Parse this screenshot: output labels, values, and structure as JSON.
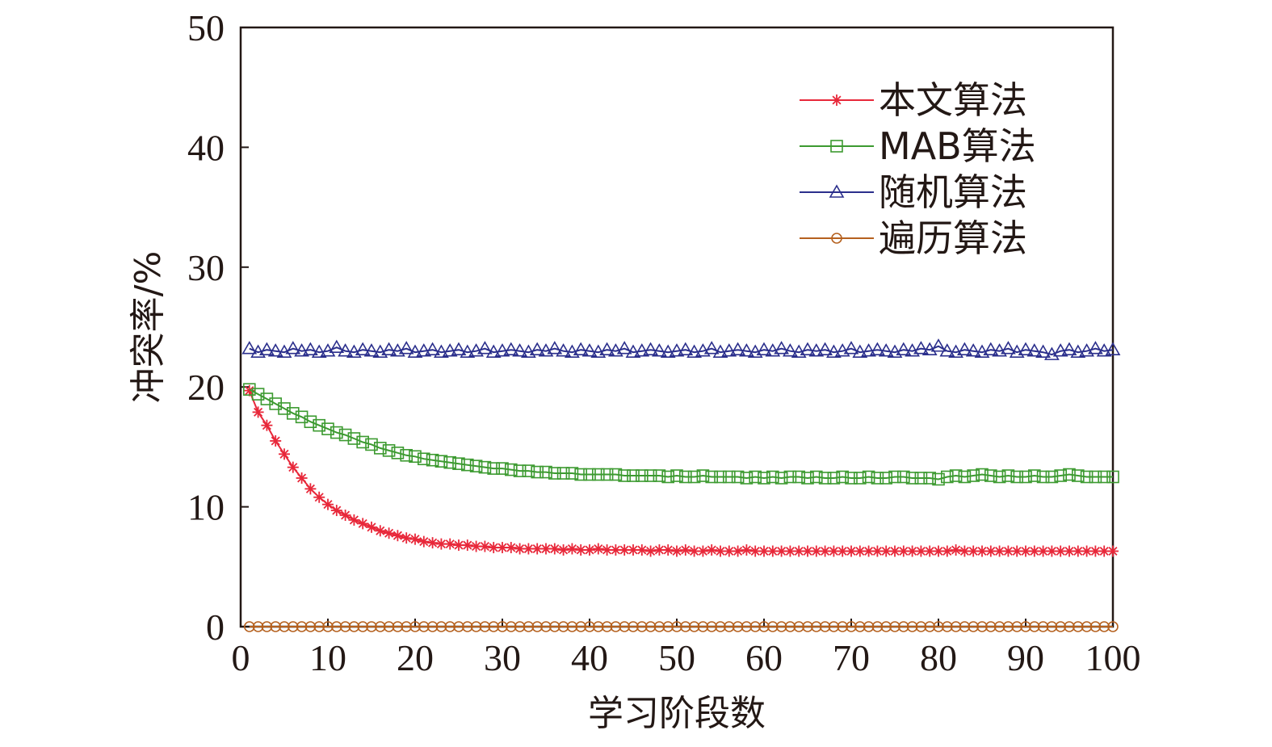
{
  "chart_data": {
    "type": "line",
    "title": "",
    "xlabel": "学习阶段数",
    "ylabel": "冲突率/%",
    "xlim": [
      0,
      100
    ],
    "ylim": [
      0,
      50
    ],
    "x_ticks": [
      "0",
      "10",
      "20",
      "30",
      "40",
      "50",
      "60",
      "70",
      "80",
      "90",
      "100"
    ],
    "y_ticks": [
      "0",
      "10",
      "20",
      "30",
      "40",
      "50"
    ],
    "grid": false,
    "legend_position": "top-right",
    "x": [
      1,
      2,
      3,
      4,
      5,
      6,
      7,
      8,
      9,
      10,
      11,
      12,
      13,
      14,
      15,
      16,
      17,
      18,
      19,
      20,
      21,
      22,
      23,
      24,
      25,
      26,
      27,
      28,
      29,
      30,
      31,
      32,
      33,
      34,
      35,
      36,
      37,
      38,
      39,
      40,
      41,
      42,
      43,
      44,
      45,
      46,
      47,
      48,
      49,
      50,
      51,
      52,
      53,
      54,
      55,
      56,
      57,
      58,
      59,
      60,
      61,
      62,
      63,
      64,
      65,
      66,
      67,
      68,
      69,
      70,
      71,
      72,
      73,
      74,
      75,
      76,
      77,
      78,
      79,
      80,
      81,
      82,
      83,
      84,
      85,
      86,
      87,
      88,
      89,
      90,
      91,
      92,
      93,
      94,
      95,
      96,
      97,
      98,
      99,
      100
    ],
    "series": [
      {
        "name": "本文算法",
        "color": "#e8283a",
        "marker": "asterisk",
        "values": [
          19.7,
          17.9,
          16.8,
          15.5,
          14.4,
          13.3,
          12.4,
          11.5,
          10.8,
          10.2,
          9.7,
          9.3,
          8.9,
          8.6,
          8.3,
          8.0,
          7.8,
          7.6,
          7.4,
          7.3,
          7.1,
          7.0,
          6.9,
          6.9,
          6.8,
          6.8,
          6.7,
          6.7,
          6.6,
          6.6,
          6.6,
          6.5,
          6.5,
          6.5,
          6.5,
          6.5,
          6.4,
          6.5,
          6.4,
          6.4,
          6.5,
          6.4,
          6.4,
          6.4,
          6.4,
          6.4,
          6.3,
          6.4,
          6.4,
          6.3,
          6.4,
          6.3,
          6.3,
          6.4,
          6.3,
          6.3,
          6.3,
          6.4,
          6.3,
          6.3,
          6.3,
          6.3,
          6.3,
          6.3,
          6.3,
          6.3,
          6.3,
          6.3,
          6.3,
          6.3,
          6.3,
          6.3,
          6.3,
          6.3,
          6.3,
          6.3,
          6.3,
          6.3,
          6.3,
          6.3,
          6.3,
          6.4,
          6.3,
          6.3,
          6.3,
          6.3,
          6.3,
          6.3,
          6.3,
          6.3,
          6.3,
          6.3,
          6.3,
          6.3,
          6.3,
          6.3,
          6.3,
          6.3,
          6.3,
          6.3
        ]
      },
      {
        "name": "MAB算法",
        "color": "#3c9a30",
        "marker": "square",
        "values": [
          19.8,
          19.4,
          19.0,
          18.6,
          18.2,
          17.8,
          17.5,
          17.1,
          16.8,
          16.5,
          16.2,
          16.0,
          15.7,
          15.4,
          15.2,
          14.9,
          14.7,
          14.5,
          14.3,
          14.2,
          14.0,
          13.9,
          13.8,
          13.7,
          13.6,
          13.5,
          13.4,
          13.3,
          13.2,
          13.2,
          13.1,
          13.0,
          13.0,
          12.9,
          12.9,
          12.8,
          12.8,
          12.8,
          12.7,
          12.7,
          12.7,
          12.7,
          12.7,
          12.6,
          12.6,
          12.6,
          12.6,
          12.6,
          12.5,
          12.6,
          12.5,
          12.5,
          12.6,
          12.5,
          12.5,
          12.5,
          12.5,
          12.4,
          12.5,
          12.4,
          12.5,
          12.4,
          12.5,
          12.5,
          12.4,
          12.5,
          12.4,
          12.4,
          12.5,
          12.4,
          12.4,
          12.5,
          12.4,
          12.4,
          12.5,
          12.5,
          12.4,
          12.4,
          12.4,
          12.3,
          12.5,
          12.6,
          12.5,
          12.6,
          12.7,
          12.6,
          12.5,
          12.6,
          12.5,
          12.5,
          12.6,
          12.5,
          12.5,
          12.6,
          12.7,
          12.6,
          12.5,
          12.5,
          12.5,
          12.5
        ]
      },
      {
        "name": "随机算法",
        "color": "#2b2f8c",
        "marker": "triangle",
        "values": [
          23.2,
          22.9,
          23.1,
          23.0,
          22.9,
          23.2,
          23.0,
          23.1,
          22.9,
          23.0,
          23.3,
          23.0,
          22.9,
          23.1,
          23.0,
          22.9,
          23.1,
          23.0,
          23.2,
          22.9,
          23.0,
          23.1,
          22.9,
          23.0,
          23.1,
          22.9,
          23.0,
          23.2,
          22.9,
          23.0,
          23.1,
          23.0,
          22.9,
          23.1,
          23.0,
          23.2,
          23.0,
          22.9,
          23.1,
          23.0,
          22.9,
          23.1,
          23.0,
          23.2,
          22.9,
          23.0,
          23.1,
          23.0,
          22.9,
          23.0,
          23.1,
          22.9,
          23.0,
          23.2,
          22.9,
          23.0,
          23.1,
          23.0,
          22.9,
          23.1,
          23.0,
          23.2,
          23.0,
          22.9,
          23.1,
          23.0,
          23.1,
          22.9,
          23.0,
          23.2,
          22.9,
          23.0,
          23.1,
          23.0,
          22.9,
          23.1,
          23.0,
          23.2,
          23.1,
          23.4,
          23.0,
          22.9,
          23.1,
          23.0,
          22.9,
          23.1,
          23.0,
          23.2,
          22.9,
          23.1,
          23.0,
          22.9,
          22.7,
          23.0,
          23.1,
          22.9,
          23.0,
          23.2,
          23.0,
          23.1
        ]
      },
      {
        "name": "遍历算法",
        "color": "#b5611f",
        "marker": "circle",
        "values": [
          0,
          0,
          0,
          0,
          0,
          0,
          0,
          0,
          0,
          0,
          0,
          0,
          0,
          0,
          0,
          0,
          0,
          0,
          0,
          0,
          0,
          0,
          0,
          0,
          0,
          0,
          0,
          0,
          0,
          0,
          0,
          0,
          0,
          0,
          0,
          0,
          0,
          0,
          0,
          0,
          0,
          0,
          0,
          0,
          0,
          0,
          0,
          0,
          0,
          0,
          0,
          0,
          0,
          0,
          0,
          0,
          0,
          0,
          0,
          0,
          0,
          0,
          0,
          0,
          0,
          0,
          0,
          0,
          0,
          0,
          0,
          0,
          0,
          0,
          0,
          0,
          0,
          0,
          0,
          0,
          0,
          0,
          0,
          0,
          0,
          0,
          0,
          0,
          0,
          0,
          0,
          0,
          0,
          0,
          0,
          0,
          0,
          0,
          0,
          0
        ]
      }
    ]
  }
}
